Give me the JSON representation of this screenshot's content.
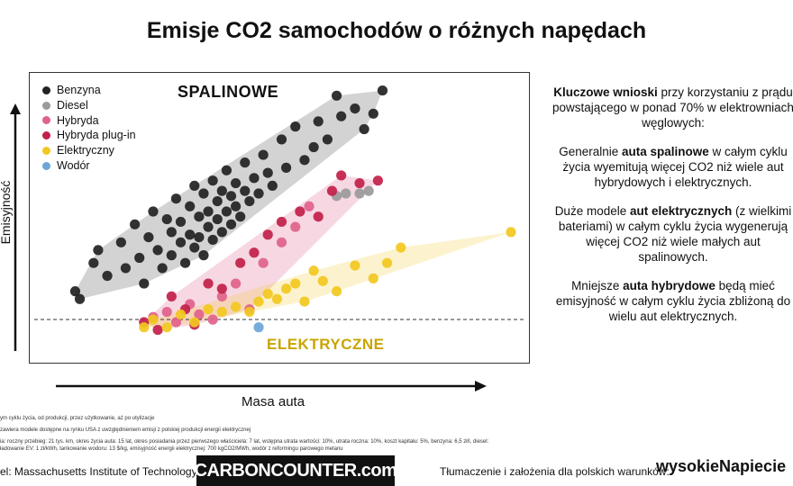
{
  "title": "Emisje CO2 samochodów o różnych napędach",
  "colors": {
    "Benzyna": "#222222",
    "Diesel": "#9a9a9a",
    "Hybryda": "#e0628a",
    "Hybryda plug-in": "#c21f4a",
    "Elektryczny": "#f2c81f",
    "Wodór": "#6aa6d8"
  },
  "cluster_labels": {
    "spalinowe": "SPALINOWE",
    "elektryczne": "ELEKTRYCZNE"
  },
  "chart_data": {
    "type": "scatter",
    "xlabel": "Masa auta",
    "ylabel": "Emisyjność",
    "grid": false,
    "legend_position": "top-left",
    "reference_line": "dashed horizontal",
    "series": [
      {
        "name": "Benzyna",
        "points": [
          [
            0.05,
            0.19
          ],
          [
            0.06,
            0.16
          ],
          [
            0.09,
            0.3
          ],
          [
            0.1,
            0.35
          ],
          [
            0.12,
            0.25
          ],
          [
            0.15,
            0.38
          ],
          [
            0.16,
            0.28
          ],
          [
            0.18,
            0.45
          ],
          [
            0.19,
            0.32
          ],
          [
            0.2,
            0.22
          ],
          [
            0.21,
            0.4
          ],
          [
            0.22,
            0.5
          ],
          [
            0.23,
            0.35
          ],
          [
            0.24,
            0.28
          ],
          [
            0.25,
            0.47
          ],
          [
            0.26,
            0.42
          ],
          [
            0.26,
            0.33
          ],
          [
            0.27,
            0.55
          ],
          [
            0.28,
            0.38
          ],
          [
            0.28,
            0.46
          ],
          [
            0.29,
            0.3
          ],
          [
            0.3,
            0.52
          ],
          [
            0.3,
            0.41
          ],
          [
            0.31,
            0.36
          ],
          [
            0.31,
            0.6
          ],
          [
            0.32,
            0.48
          ],
          [
            0.32,
            0.4
          ],
          [
            0.33,
            0.33
          ],
          [
            0.33,
            0.57
          ],
          [
            0.34,
            0.44
          ],
          [
            0.34,
            0.5
          ],
          [
            0.35,
            0.39
          ],
          [
            0.35,
            0.62
          ],
          [
            0.36,
            0.47
          ],
          [
            0.36,
            0.54
          ],
          [
            0.37,
            0.42
          ],
          [
            0.37,
            0.58
          ],
          [
            0.38,
            0.5
          ],
          [
            0.38,
            0.66
          ],
          [
            0.39,
            0.45
          ],
          [
            0.39,
            0.56
          ],
          [
            0.4,
            0.52
          ],
          [
            0.4,
            0.61
          ],
          [
            0.41,
            0.48
          ],
          [
            0.42,
            0.58
          ],
          [
            0.42,
            0.69
          ],
          [
            0.43,
            0.54
          ],
          [
            0.44,
            0.63
          ],
          [
            0.45,
            0.57
          ],
          [
            0.46,
            0.72
          ],
          [
            0.47,
            0.65
          ],
          [
            0.48,
            0.6
          ],
          [
            0.5,
            0.78
          ],
          [
            0.51,
            0.67
          ],
          [
            0.53,
            0.83
          ],
          [
            0.55,
            0.7
          ],
          [
            0.57,
            0.75
          ],
          [
            0.58,
            0.85
          ],
          [
            0.6,
            0.78
          ],
          [
            0.62,
            0.95
          ],
          [
            0.63,
            0.87
          ],
          [
            0.66,
            0.9
          ],
          [
            0.68,
            0.82
          ],
          [
            0.7,
            0.88
          ],
          [
            0.72,
            0.97
          ]
        ]
      },
      {
        "name": "Diesel",
        "points": [
          [
            0.62,
            0.56
          ],
          [
            0.64,
            0.57
          ],
          [
            0.67,
            0.57
          ],
          [
            0.69,
            0.58
          ]
        ]
      },
      {
        "name": "Hybryda",
        "points": [
          [
            0.22,
            0.09
          ],
          [
            0.25,
            0.11
          ],
          [
            0.27,
            0.07
          ],
          [
            0.3,
            0.14
          ],
          [
            0.32,
            0.1
          ],
          [
            0.35,
            0.08
          ],
          [
            0.37,
            0.17
          ],
          [
            0.4,
            0.22
          ],
          [
            0.43,
            0.12
          ],
          [
            0.46,
            0.3
          ],
          [
            0.5,
            0.38
          ],
          [
            0.53,
            0.44
          ],
          [
            0.56,
            0.52
          ]
        ]
      },
      {
        "name": "Hybryda plug-in",
        "points": [
          [
            0.2,
            0.07
          ],
          [
            0.23,
            0.04
          ],
          [
            0.26,
            0.17
          ],
          [
            0.29,
            0.12
          ],
          [
            0.31,
            0.06
          ],
          [
            0.34,
            0.22
          ],
          [
            0.37,
            0.2
          ],
          [
            0.41,
            0.3
          ],
          [
            0.44,
            0.34
          ],
          [
            0.47,
            0.41
          ],
          [
            0.5,
            0.46
          ],
          [
            0.54,
            0.5
          ],
          [
            0.58,
            0.48
          ],
          [
            0.61,
            0.58
          ],
          [
            0.63,
            0.64
          ],
          [
            0.67,
            0.61
          ],
          [
            0.71,
            0.62
          ]
        ]
      },
      {
        "name": "Elektryczny",
        "points": [
          [
            0.2,
            0.05
          ],
          [
            0.22,
            0.08
          ],
          [
            0.25,
            0.05
          ],
          [
            0.28,
            0.1
          ],
          [
            0.31,
            0.07
          ],
          [
            0.34,
            0.12
          ],
          [
            0.37,
            0.11
          ],
          [
            0.4,
            0.13
          ],
          [
            0.43,
            0.11
          ],
          [
            0.45,
            0.15
          ],
          [
            0.47,
            0.18
          ],
          [
            0.49,
            0.16
          ],
          [
            0.51,
            0.2
          ],
          [
            0.53,
            0.22
          ],
          [
            0.55,
            0.15
          ],
          [
            0.57,
            0.27
          ],
          [
            0.59,
            0.23
          ],
          [
            0.62,
            0.19
          ],
          [
            0.66,
            0.29
          ],
          [
            0.7,
            0.24
          ],
          [
            0.73,
            0.3
          ],
          [
            0.76,
            0.36
          ],
          [
            1.0,
            0.42
          ]
        ]
      },
      {
        "name": "Wodór",
        "points": [
          [
            0.45,
            0.05
          ]
        ]
      }
    ]
  },
  "side_text": {
    "p1_bold": "Kluczowe wnioski",
    "p1_rest": " przy korzystaniu z prądu powstającego w ponad 70% w elektrowniach węglowych:",
    "p2_a": "Generalnie ",
    "p2_bold": "auta spalinowe",
    "p2_b": " w całym cyklu życia wyemitują więcej CO2 niż wiele aut hybrydowych i elektrycznych.",
    "p3_a": "Duże modele ",
    "p3_bold": "aut elektrycznych",
    "p3_b": " (z wielkimi bateriami) w całym cyklu życia wygenerują więcej CO2 niż wiele małych aut spalinowych.",
    "p4_a": "Mniejsze ",
    "p4_bold": "auta hybrydowe",
    "p4_b": " będą mieć emisyjność w całym cyklu życia zbliżoną do wielu aut elektrycznych."
  },
  "footnotes": {
    "f1": "ym cyklu życia, od produkcji, przez użytkowanie, aż po utylizacje",
    "f2": "zawiera modele dostępne na rynku USA z uwzględnieniem emisji z polskiej produkcji energii elektrycznej",
    "f3": "ia: roczny przebieg: 21 tys. km, okres życia auta: 15 lat, okres posiadania przez pierwszego właściciela: 7 lat, wstępna utrata wartości: 10%, utrata roczna: 10%, koszt kapitału: 5%, benzyna: 6,5 zł/l, diesel:",
    "f4": "ładowanie EV: 1 zł/kWh, tankowanie wodoru: 13 $/kg, emisyjność energii elektrycznej: 700 kgCO2/MWh, wodór z reformingu parowego metanu"
  },
  "bottom": {
    "source": "el: Massachusetts Institute of Technology",
    "carbon_logo": "CARBONCOUNTER.com",
    "credit": "Tłumaczenie i założenia dla polskich warunków:",
    "brand": "wysokieNapiecie"
  }
}
